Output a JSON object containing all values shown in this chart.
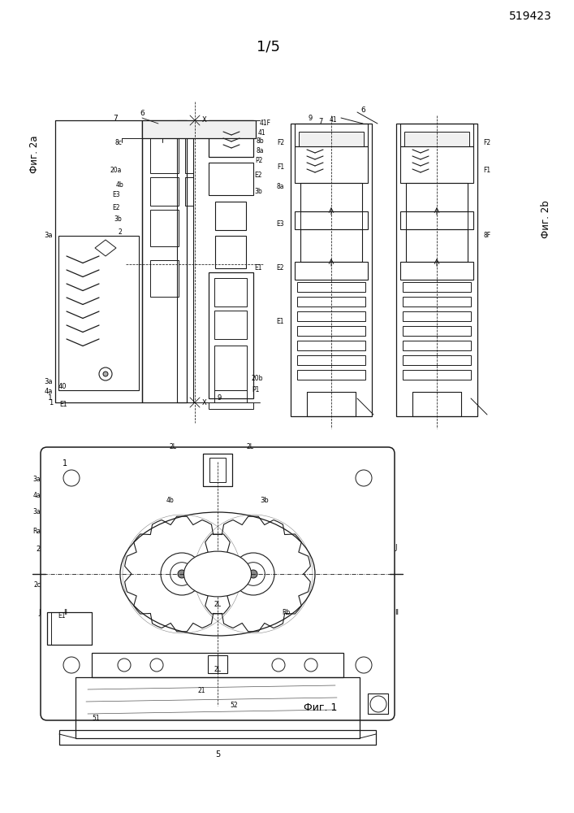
{
  "patent_number": "519423",
  "page_label": "1/5",
  "fig2a_label": "Фиг. 2a",
  "fig2b_label": "Фиг. 2b",
  "fig1_label": "Фиг. 1",
  "background_color": "#ffffff",
  "line_color": "#1a1a1a",
  "fig_width": 7.07,
  "fig_height": 10.0,
  "dpi": 100
}
